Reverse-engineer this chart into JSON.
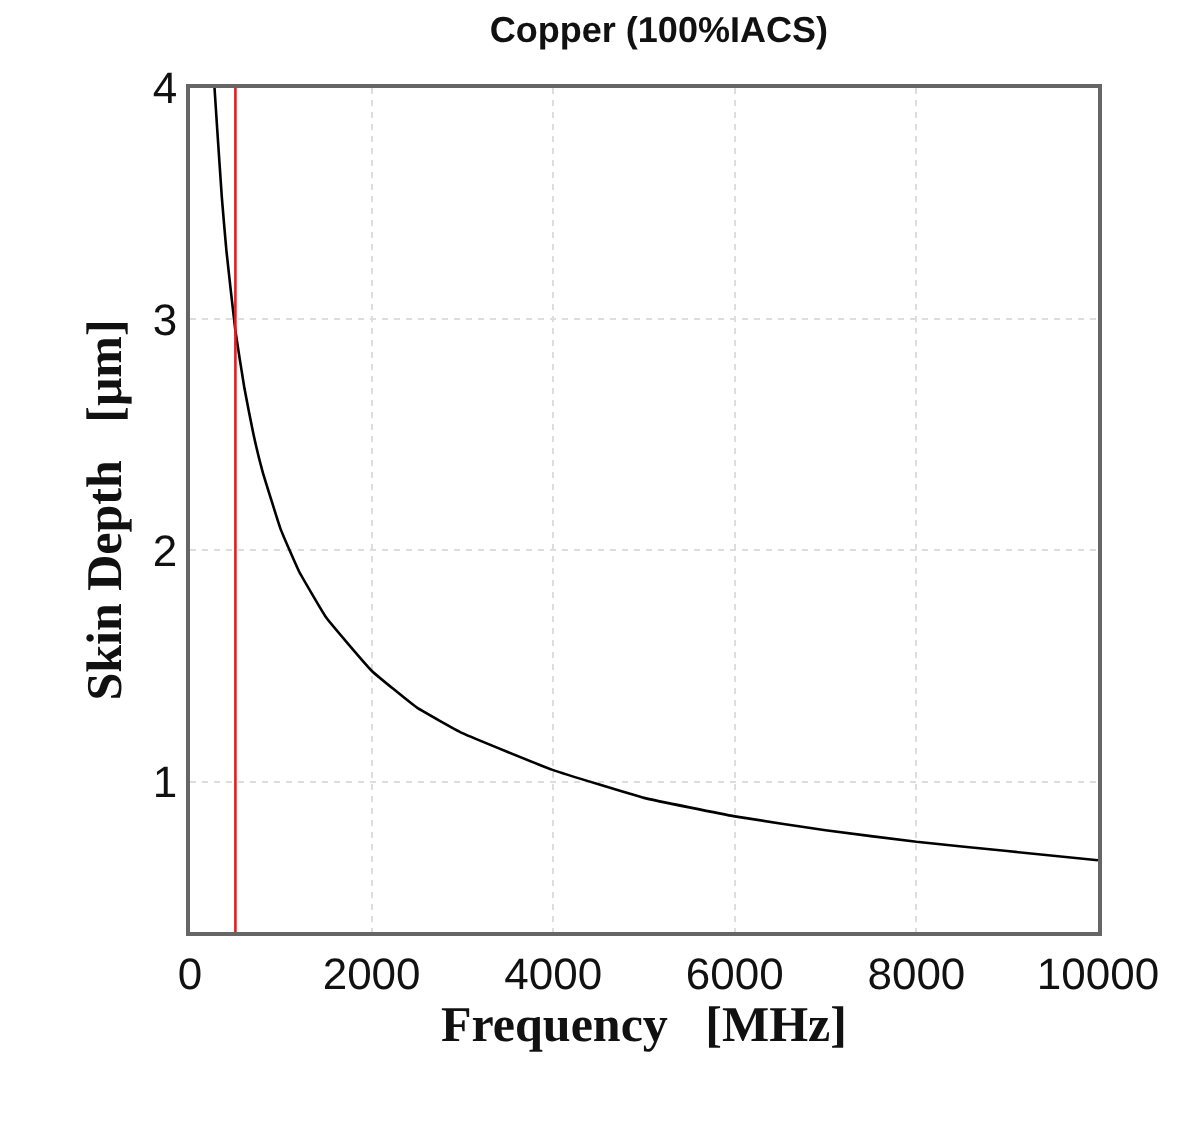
{
  "chart_data": {
    "type": "line",
    "title": "Copper (100%IACS)",
    "xlabel": "Frequency   [MHz]",
    "ylabel": "Skin Depth   [μm]",
    "x": [
      270,
      300,
      350,
      400,
      500,
      600,
      700,
      800,
      1000,
      1200,
      1500,
      2000,
      2500,
      3000,
      4000,
      5000,
      6000,
      7000,
      8000,
      9000,
      10000
    ],
    "series": [
      {
        "color": "#000000",
        "values": [
          4.0,
          3.82,
          3.53,
          3.3,
          2.95,
          2.7,
          2.5,
          2.34,
          2.09,
          1.91,
          1.71,
          1.48,
          1.32,
          1.21,
          1.05,
          0.93,
          0.85,
          0.79,
          0.74,
          0.7,
          0.66
        ]
      }
    ],
    "xlim": [
      0,
      10000
    ],
    "xticks": [
      0,
      2000,
      4000,
      6000,
      8000,
      10000
    ],
    "ylim": [
      0.35,
      4
    ],
    "yticks": [
      1,
      2,
      3,
      4
    ],
    "ref_lines": [
      {
        "axis": "x",
        "value": 500,
        "color": "#e02020"
      }
    ],
    "grid": true,
    "marker": "none",
    "line_style": "solid"
  }
}
